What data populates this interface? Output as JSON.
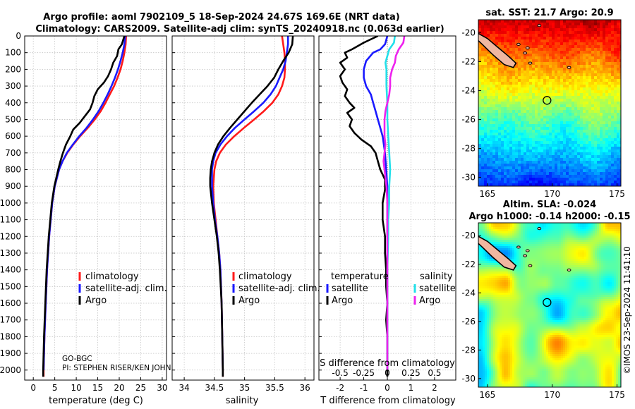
{
  "header": {
    "line1": "Argo profile: aoml 7902109_5 18-Sep-2024 24.67S 169.6E (NRT data)",
    "line2": "Climatology: CARS2009. Satellite-adj clim: synTS_20240918.nc (0.063d earlier)"
  },
  "footer_note": {
    "program": "GO-BGC",
    "pi": "PI: STEPHEN RISER/KEN JOHN"
  },
  "watermark": "©IMOS 23-Sep-2024 11:41:10",
  "colors": {
    "climatology": "#ff1a1a",
    "satellite": "#1a1aff",
    "argo": "#000000",
    "sal_sat": "#22e0ea",
    "sal_argo": "#ee22ee",
    "grid": "#c4c4c4"
  },
  "chart_data": [
    {
      "id": "temperature",
      "type": "line",
      "xlabel": "temperature (deg C)",
      "ylabel": "",
      "xlim": [
        -2,
        31
      ],
      "ylim": [
        2060,
        0
      ],
      "xticks": [
        0,
        5,
        10,
        15,
        20,
        25,
        30
      ],
      "yticks": [
        0,
        100,
        200,
        300,
        400,
        500,
        600,
        700,
        800,
        900,
        1000,
        1100,
        1200,
        1300,
        1400,
        1500,
        1600,
        1700,
        1800,
        1900,
        2000
      ],
      "grid": true,
      "legend": [
        "climatology",
        "satellite-adj. clim.",
        "Argo"
      ],
      "legend_position": "lower-right",
      "series": [
        {
          "name": "climatology",
          "color": "#ff1a1a",
          "depth": [
            0,
            50,
            100,
            150,
            200,
            250,
            300,
            350,
            400,
            450,
            500,
            550,
            600,
            650,
            700,
            750,
            800,
            900,
            1000,
            1200,
            1400,
            1600,
            1800,
            2000,
            2040
          ],
          "values": [
            21.6,
            21.5,
            21.2,
            20.8,
            20.3,
            19.6,
            18.8,
            17.8,
            16.8,
            15.7,
            14.3,
            12.7,
            10.9,
            9.3,
            7.9,
            6.8,
            6.0,
            5.0,
            4.4,
            3.7,
            3.2,
            2.9,
            2.6,
            2.4,
            2.4
          ]
        },
        {
          "name": "satellite-adj. clim.",
          "color": "#1a1aff",
          "depth": [
            0,
            50,
            100,
            150,
            200,
            250,
            300,
            350,
            400,
            450,
            500,
            550,
            600,
            650,
            700,
            750,
            800,
            900,
            1000,
            1200,
            1400,
            1600,
            1800,
            2000
          ],
          "values": [
            21.4,
            21.2,
            20.8,
            20.3,
            19.7,
            19.0,
            18.2,
            17.3,
            16.3,
            15.2,
            13.9,
            12.4,
            10.7,
            9.2,
            7.8,
            6.8,
            6.0,
            5.0,
            4.4,
            3.7,
            3.2,
            2.9,
            2.6,
            2.4
          ]
        },
        {
          "name": "Argo",
          "color": "#000000",
          "depth": [
            0,
            50,
            80,
            120,
            160,
            200,
            240,
            280,
            320,
            360,
            400,
            440,
            480,
            520,
            560,
            600,
            650,
            700,
            750,
            800,
            900,
            1000,
            1200,
            1400,
            1600,
            1800,
            2000,
            2040
          ],
          "values": [
            21.2,
            20.6,
            19.8,
            19.5,
            18.6,
            18.1,
            17.4,
            16.4,
            15.0,
            14.2,
            13.8,
            13.2,
            12.0,
            10.8,
            9.3,
            8.6,
            7.6,
            6.9,
            6.3,
            5.8,
            4.9,
            4.3,
            3.6,
            3.1,
            2.8,
            2.5,
            2.3,
            2.3
          ]
        }
      ]
    },
    {
      "id": "salinity",
      "type": "line",
      "xlabel": "salinity",
      "xlim": [
        33.8,
        36.15
      ],
      "ylim": [
        2060,
        0
      ],
      "xticks": [
        34,
        34.5,
        35,
        35.5,
        36
      ],
      "xticklabels": [
        "34",
        "34.5",
        "35",
        "35.5",
        "36"
      ],
      "grid": true,
      "legend": [
        "climatology",
        "satellite-adj. clim.",
        "Argo"
      ],
      "legend_position": "lower-right",
      "series": [
        {
          "name": "climatology",
          "color": "#ff1a1a",
          "depth": [
            0,
            50,
            100,
            150,
            200,
            250,
            300,
            350,
            400,
            450,
            500,
            550,
            600,
            650,
            700,
            750,
            800,
            900,
            1000,
            1100,
            1200,
            1300,
            1400,
            1600,
            1800,
            2000,
            2040
          ],
          "values": [
            35.62,
            35.64,
            35.66,
            35.67,
            35.67,
            35.66,
            35.62,
            35.56,
            35.46,
            35.32,
            35.16,
            34.99,
            34.83,
            34.69,
            34.59,
            34.53,
            34.5,
            34.48,
            34.49,
            34.52,
            34.55,
            34.58,
            34.6,
            34.62,
            34.63,
            34.64,
            34.64
          ]
        },
        {
          "name": "satellite-adj. clim.",
          "color": "#1a1aff",
          "depth": [
            0,
            50,
            100,
            150,
            200,
            250,
            300,
            350,
            400,
            450,
            500,
            550,
            600,
            650,
            700,
            750,
            800,
            900,
            1000,
            1100,
            1200,
            1300,
            1400,
            1600,
            1800,
            2000
          ],
          "values": [
            35.72,
            35.72,
            35.7,
            35.68,
            35.64,
            35.58,
            35.52,
            35.43,
            35.31,
            35.16,
            35.0,
            34.84,
            34.71,
            34.6,
            34.52,
            34.48,
            34.46,
            34.46,
            34.48,
            34.51,
            34.55,
            34.58,
            34.6,
            34.62,
            34.63,
            34.64
          ]
        },
        {
          "name": "Argo",
          "color": "#000000",
          "depth": [
            0,
            50,
            100,
            150,
            200,
            250,
            300,
            350,
            400,
            450,
            500,
            550,
            600,
            650,
            700,
            750,
            800,
            850,
            900,
            1000,
            1100,
            1200,
            1300,
            1400,
            1600,
            1800,
            2000,
            2040
          ],
          "values": [
            35.8,
            35.79,
            35.73,
            35.64,
            35.56,
            35.49,
            35.38,
            35.25,
            35.12,
            35.0,
            34.88,
            34.76,
            34.65,
            34.56,
            34.5,
            34.46,
            34.44,
            34.43,
            34.43,
            34.46,
            34.5,
            34.54,
            34.57,
            34.59,
            34.62,
            34.63,
            34.64,
            34.64
          ]
        }
      ]
    },
    {
      "id": "difference",
      "type": "line",
      "xlabel": "T difference from climatology",
      "top_axis_label": "S difference from climatology",
      "xlim": [
        -2.9,
        2.9
      ],
      "ylim": [
        2060,
        0
      ],
      "xticks": [
        -2,
        -1,
        0,
        1,
        2
      ],
      "xticklabels": [
        "-2",
        "-1",
        "0",
        "1",
        "2"
      ],
      "sticks": [
        -0.5,
        -0.25,
        0,
        0.25,
        0.5
      ],
      "sticklabels": [
        "-0.5",
        "-0.25",
        "0",
        "0.25",
        "0.5"
      ],
      "s_scale_per_t_unit": 0.25,
      "grid": true,
      "legend": {
        "temperature_heading": "temperature",
        "salinity_heading": "salinity",
        "satellite": "satellite",
        "argo": "Argo"
      },
      "series": [
        {
          "name": "T satellite",
          "color": "#1a1aff",
          "depth": [
            0,
            50,
            80,
            100,
            150,
            200,
            250,
            300,
            350,
            400,
            450,
            500,
            550,
            600,
            700,
            800,
            900,
            1000,
            1100,
            1200,
            1400,
            1600,
            1800,
            2000
          ],
          "values": [
            0.0,
            -0.1,
            -0.3,
            -0.6,
            -0.9,
            -1.0,
            -1.0,
            -0.9,
            -0.7,
            -0.6,
            -0.5,
            -0.4,
            -0.3,
            -0.2,
            -0.1,
            -0.05,
            0,
            0,
            0,
            0,
            0,
            0,
            0,
            0
          ]
        },
        {
          "name": "T Argo",
          "color": "#000000",
          "depth": [
            0,
            40,
            80,
            100,
            130,
            160,
            200,
            240,
            280,
            320,
            360,
            400,
            430,
            460,
            500,
            540,
            580,
            620,
            660,
            700,
            750,
            800,
            860,
            920,
            1000,
            1100,
            1200,
            1300,
            1400,
            1500,
            1600,
            1700,
            1800,
            1900,
            2000,
            2040
          ],
          "values": [
            -0.4,
            -1.0,
            -1.5,
            -1.8,
            -1.7,
            -2.0,
            -1.8,
            -2.0,
            -1.9,
            -1.7,
            -1.8,
            -1.6,
            -1.4,
            -1.7,
            -1.5,
            -1.6,
            -1.4,
            -1.1,
            -0.7,
            -0.5,
            -0.4,
            -0.3,
            -0.1,
            -0.1,
            -0.2,
            -0.2,
            -0.1,
            -0.1,
            -0.05,
            -0.05,
            0,
            -0.05,
            0,
            0,
            0,
            0
          ]
        },
        {
          "name": "S satellite",
          "color": "#22e0ea",
          "depth": [
            0,
            40,
            80,
            120,
            160,
            200,
            300,
            400,
            500,
            600,
            700,
            800,
            900,
            1000,
            1100,
            1200,
            1400,
            1600,
            1800,
            2000
          ],
          "values": [
            0.08,
            0.07,
            0.02,
            0.0,
            -0.02,
            -0.01,
            -0.01,
            0.0,
            0.0,
            0.01,
            0.02,
            0.03,
            0.02,
            0.02,
            0.01,
            0.01,
            0.0,
            0.0,
            0.0,
            0.0
          ]
        },
        {
          "name": "S Argo",
          "color": "#ee22ee",
          "depth": [
            0,
            40,
            80,
            120,
            160,
            200,
            250,
            300,
            350,
            400,
            450,
            500,
            550,
            600,
            650,
            700,
            750,
            800,
            900,
            1000,
            1100,
            1200,
            1400,
            1600,
            1800,
            2000
          ],
          "values": [
            0.18,
            0.17,
            0.12,
            0.09,
            0.08,
            0.05,
            0.03,
            0.03,
            0.02,
            0.0,
            -0.02,
            -0.03,
            -0.03,
            -0.03,
            -0.02,
            -0.03,
            -0.04,
            -0.03,
            -0.01,
            0.0,
            0.0,
            0.0,
            0.0,
            0.0,
            0.0,
            0.0
          ]
        }
      ]
    },
    {
      "id": "sst_map",
      "type": "heatmap",
      "title": "sat. SST: 21.7 Argo: 20.9",
      "xlim": [
        164.3,
        175.3
      ],
      "ylim": [
        -30.6,
        -19.1
      ],
      "xticks": [
        165,
        170,
        175
      ],
      "xticklabels": [
        "165",
        "170",
        "175"
      ],
      "yticks": [
        -20,
        -22,
        -24,
        -26,
        -28,
        -30
      ],
      "yticklabels": [
        "-20",
        "-22",
        "-24",
        "-26",
        "-28",
        "-30"
      ],
      "float_position": {
        "lon": 169.6,
        "lat": -24.67
      }
    },
    {
      "id": "sla_map",
      "type": "heatmap",
      "title": "Altim. SLA: -0.024",
      "subtitle": "Argo h1000: -0.14 h2000: -0.15",
      "xlim": [
        164.3,
        175.3
      ],
      "ylim": [
        -30.6,
        -19.1
      ],
      "xticks": [
        165,
        170,
        175
      ],
      "xticklabels": [
        "165",
        "170",
        "175"
      ],
      "yticks": [
        -20,
        -22,
        -24,
        -26,
        -28,
        -30
      ],
      "yticklabels": [
        "-20",
        "-22",
        "-24",
        "-26",
        "-28",
        "-30"
      ],
      "float_position": {
        "lon": 169.6,
        "lat": -24.67
      }
    }
  ]
}
